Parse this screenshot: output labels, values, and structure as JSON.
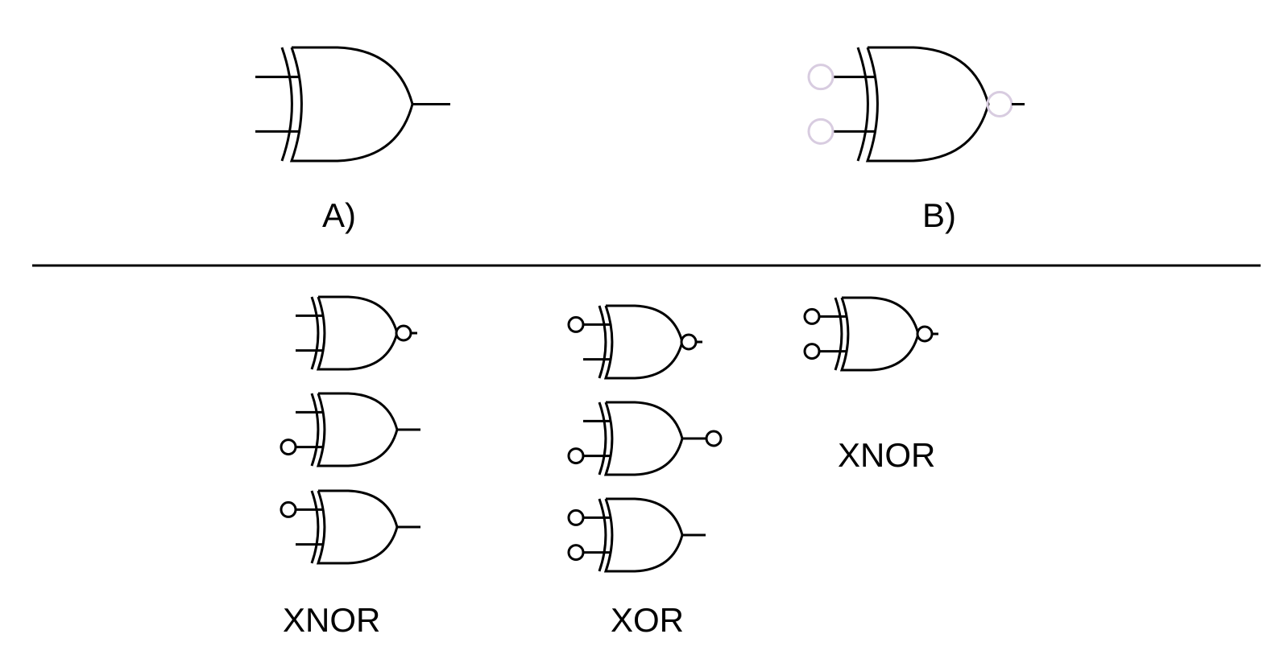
{
  "figure": {
    "top_section": {
      "option_a": {
        "label": "A)",
        "gate": "xor",
        "inputs": [
          "plain",
          "plain"
        ],
        "output": "plain"
      },
      "option_b": {
        "label": "B)",
        "gate": "xor",
        "inputs": [
          "bubble-faded",
          "bubble-faded"
        ],
        "output": "bubble-faded"
      }
    },
    "bottom_section": {
      "column_1": {
        "label": "XNOR",
        "gates": [
          {
            "inputs": [
              "plain",
              "plain"
            ],
            "output": "bubble"
          },
          {
            "inputs": [
              "plain",
              "bubble"
            ],
            "output": "plain"
          },
          {
            "inputs": [
              "bubble",
              "plain"
            ],
            "output": "plain"
          }
        ]
      },
      "column_2": {
        "label": "XOR",
        "gates": [
          {
            "inputs": [
              "bubble",
              "plain"
            ],
            "output": "bubble"
          },
          {
            "inputs": [
              "plain",
              "bubble"
            ],
            "output": "bubble"
          },
          {
            "inputs": [
              "bubble",
              "bubble"
            ],
            "output": "plain"
          }
        ]
      },
      "column_3": {
        "label": "XNOR",
        "gates": [
          {
            "inputs": [
              "bubble",
              "bubble"
            ],
            "output": "bubble"
          }
        ]
      }
    },
    "colors": {
      "stroke": "#000000",
      "faded_bubble": "#d8cce0",
      "background": "#ffffff"
    }
  }
}
